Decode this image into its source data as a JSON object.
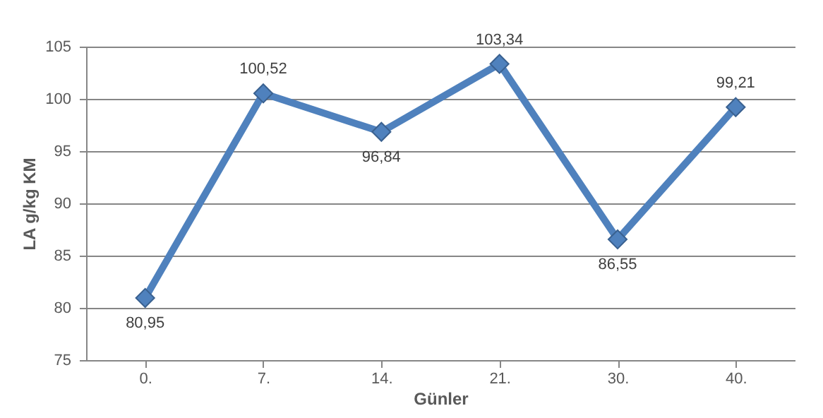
{
  "chart_data": {
    "type": "line",
    "xlabel": "Günler",
    "ylabel": "LA g/kg KM",
    "categories": [
      "0.",
      "7.",
      "14.",
      "21.",
      "30.",
      "40."
    ],
    "values": [
      80.95,
      100.52,
      96.84,
      103.34,
      86.55,
      99.21
    ],
    "value_labels": [
      "80,95",
      "100,52",
      "96,84",
      "103,34",
      "86,55",
      "99,21"
    ],
    "color": "#4f81bd",
    "ylim": [
      75,
      105
    ],
    "yticks": [
      75,
      80,
      85,
      90,
      95,
      100,
      105
    ],
    "grid": "y",
    "marker": "diamond",
    "line_style": "solid"
  }
}
